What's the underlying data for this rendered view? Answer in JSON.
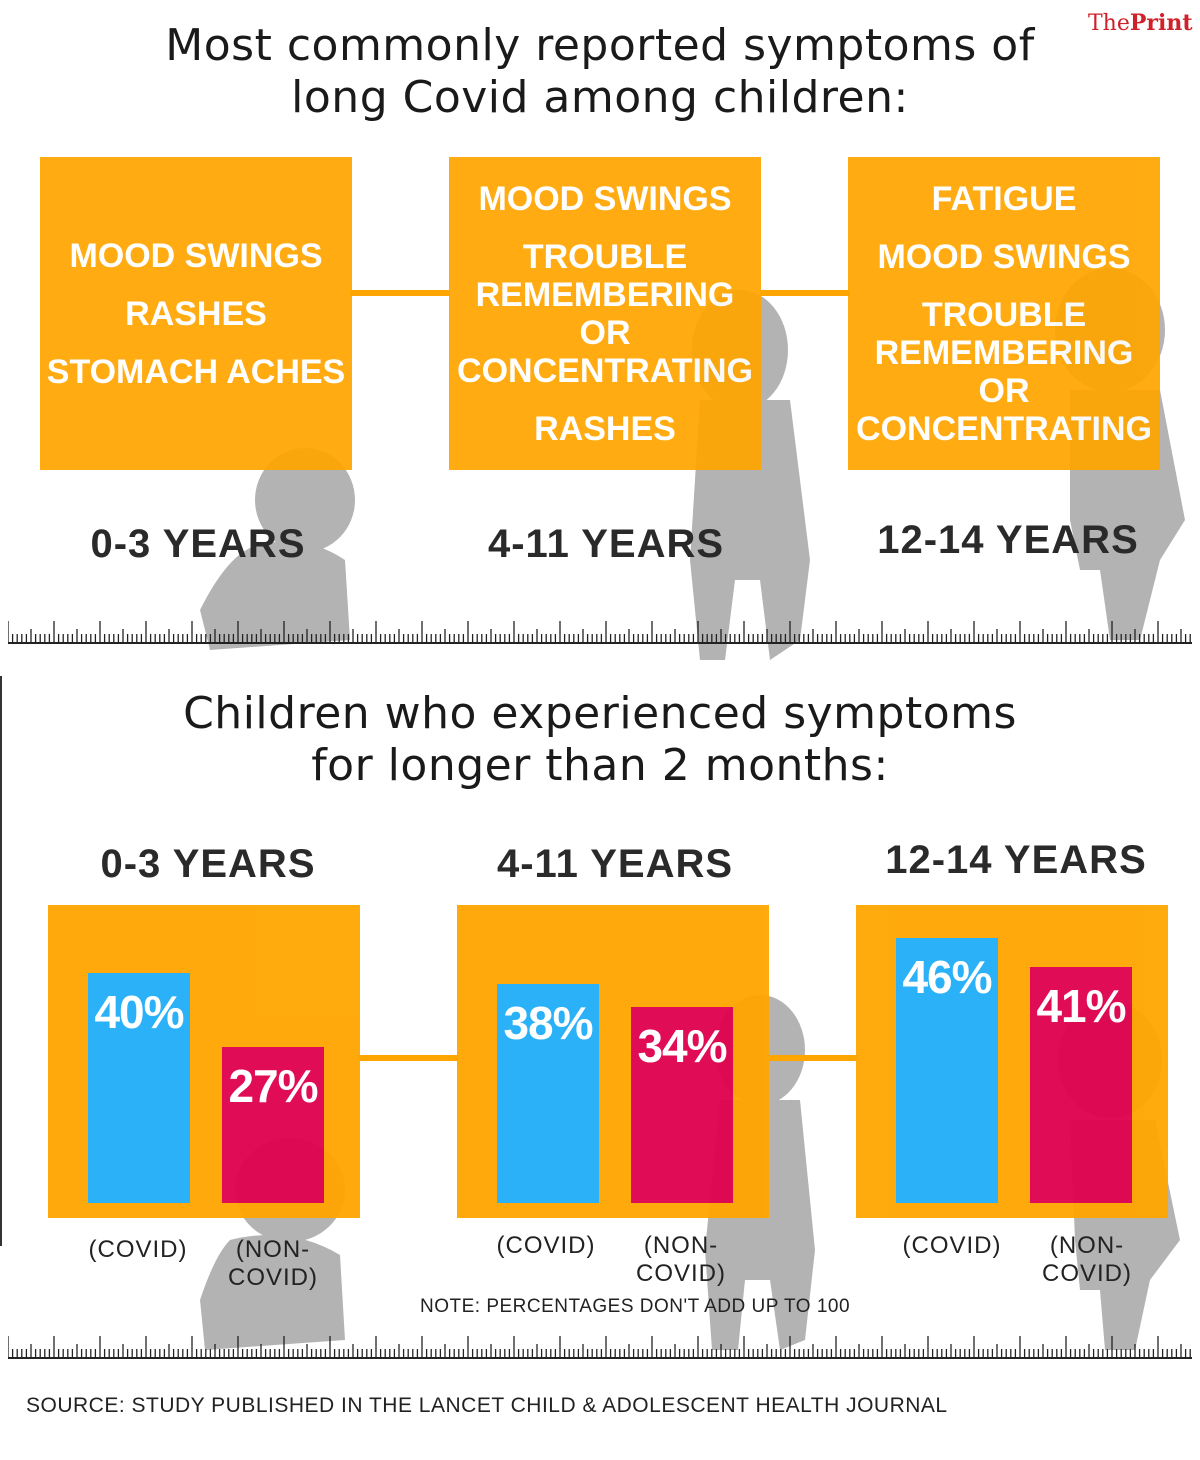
{
  "brand": {
    "prefix": "The",
    "name": "Print"
  },
  "section1": {
    "title": "Most commonly reported symptoms of\nlong Covid among children:",
    "groups": [
      {
        "age": "0-3 YEARS",
        "symptoms": [
          "MOOD SWINGS",
          "RASHES",
          "STOMACH ACHES"
        ]
      },
      {
        "age": "4-11 YEARS",
        "symptoms": [
          "MOOD SWINGS",
          "TROUBLE\nREMEMBERING\nOR\nCONCENTRATING",
          "RASHES"
        ]
      },
      {
        "age": "12-14 YEARS",
        "symptoms": [
          "FATIGUE",
          "MOOD SWINGS",
          "TROUBLE\nREMEMBERING\nOR\nCONCENTRATING"
        ]
      }
    ]
  },
  "section2": {
    "title": "Children who experienced symptoms\nfor longer than 2 months:",
    "note": "NOTE: PERCENTAGES DON'T ADD UP TO 100"
  },
  "chart_data": [
    {
      "type": "bar",
      "title": "0-3 YEARS",
      "categories": [
        "(COVID)",
        "(NON-COVID)"
      ],
      "values": [
        40,
        27
      ],
      "value_labels": [
        "40%",
        "27%"
      ],
      "colors": [
        "#1fadf7",
        "#e0004d"
      ],
      "ylim": [
        0,
        50
      ]
    },
    {
      "type": "bar",
      "title": "4-11 YEARS",
      "categories": [
        "(COVID)",
        "(NON-COVID)"
      ],
      "values": [
        38,
        34
      ],
      "value_labels": [
        "38%",
        "34%"
      ],
      "colors": [
        "#1fadf7",
        "#e0004d"
      ],
      "ylim": [
        0,
        50
      ]
    },
    {
      "type": "bar",
      "title": "12-14 YEARS",
      "categories": [
        "(COVID)",
        "(NON-COVID)"
      ],
      "values": [
        46,
        41
      ],
      "value_labels": [
        "46%",
        "41%"
      ],
      "colors": [
        "#1fadf7",
        "#e0004d"
      ],
      "ylim": [
        0,
        50
      ]
    }
  ],
  "colors": {
    "accent": "#ffa500",
    "covid": "#1fadf7",
    "non_covid": "#e0004d",
    "brand": "#d0212a"
  },
  "source": "SOURCE: STUDY PUBLISHED IN THE LANCET CHILD & ADOLESCENT HEALTH JOURNAL"
}
